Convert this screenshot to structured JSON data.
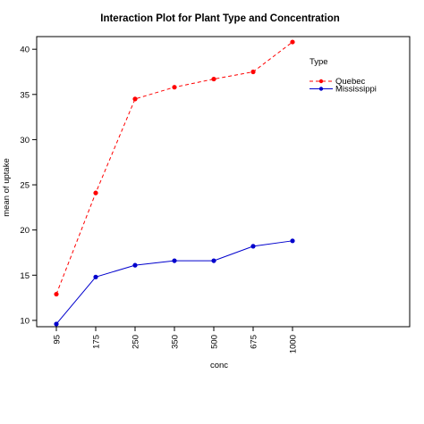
{
  "chart_data": {
    "type": "line",
    "title": "Interaction Plot for Plant Type and Concentration",
    "xlabel": "conc",
    "ylabel": "mean of  uptake",
    "categories": [
      "95",
      "175",
      "250",
      "350",
      "500",
      "675",
      "1000"
    ],
    "ylim": [
      9.3,
      41.4
    ],
    "yticks": [
      10,
      15,
      20,
      25,
      30,
      35,
      40
    ],
    "grid": false,
    "legend": {
      "title": "Type",
      "position": "top-right"
    },
    "series": [
      {
        "name": "Quebec",
        "values": [
          12.9,
          24.1,
          34.5,
          35.8,
          36.7,
          37.5,
          40.8
        ],
        "color": "#ff0000",
        "line_style": "dashed",
        "marker": "filled-circle"
      },
      {
        "name": "Mississippi",
        "values": [
          9.6,
          14.8,
          16.1,
          16.6,
          16.6,
          18.2,
          18.8
        ],
        "color": "#0000cd",
        "line_style": "solid",
        "marker": "filled-circle"
      }
    ]
  }
}
